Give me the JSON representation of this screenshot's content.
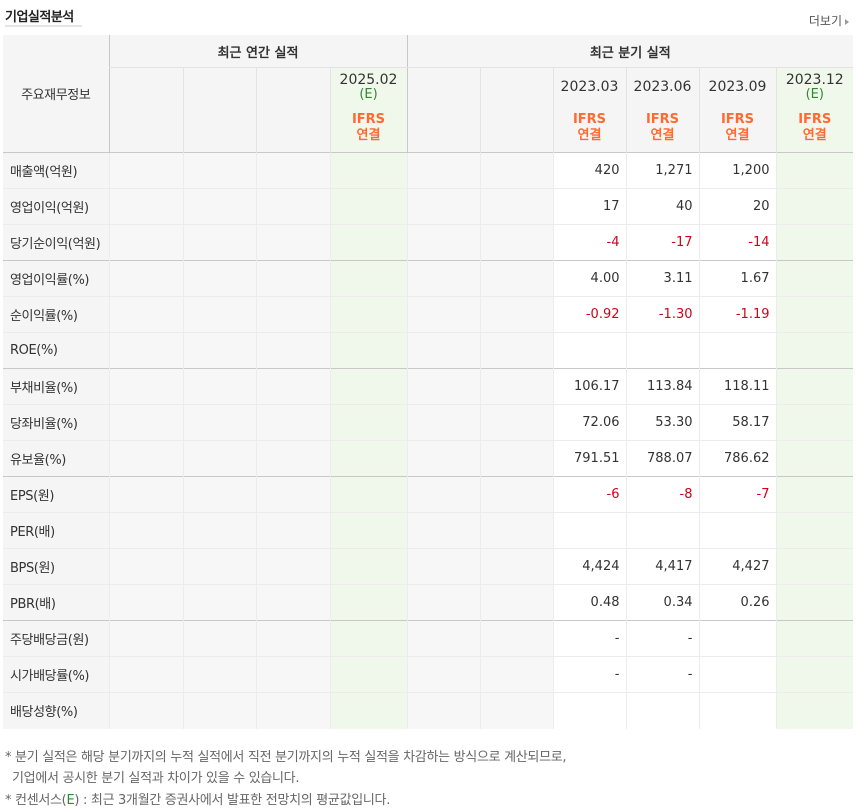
{
  "header": {
    "title": "기업실적분석",
    "more_label": "더보기"
  },
  "table": {
    "row_header_label": "주요재무정보",
    "annual_group_label": "최근 연간 실적",
    "quarter_group_label": "최근 분기 실적",
    "annual_columns": [
      "",
      "",
      "",
      "2025.02"
    ],
    "annual_estimates": [
      "",
      "",
      "",
      "(E)"
    ],
    "annual_ifrs": [
      "",
      "",
      "",
      "IFRS"
    ],
    "annual_basis": [
      "",
      "",
      "",
      "연결"
    ],
    "quarter_columns": [
      "",
      "",
      "2023.03",
      "2023.06",
      "2023.09",
      "2023.12"
    ],
    "quarter_estimates": [
      "",
      "",
      "",
      "",
      "",
      "(E)"
    ],
    "quarter_ifrs": [
      "",
      "",
      "IFRS",
      "IFRS",
      "IFRS",
      "IFRS"
    ],
    "quarter_basis": [
      "",
      "",
      "연결",
      "연결",
      "연결",
      "연결"
    ],
    "rows": [
      {
        "label": "매출액(억원)",
        "q": [
          "",
          "",
          "420",
          "1,271",
          "1,200",
          ""
        ]
      },
      {
        "label": "영업이익(억원)",
        "q": [
          "",
          "",
          "17",
          "40",
          "20",
          ""
        ]
      },
      {
        "label": "당기순이익(억원)",
        "q": [
          "",
          "",
          "-4",
          "-17",
          "-14",
          ""
        ]
      },
      {
        "label": "영업이익률(%)",
        "q": [
          "",
          "",
          "4.00",
          "3.11",
          "1.67",
          ""
        ]
      },
      {
        "label": "순이익률(%)",
        "q": [
          "",
          "",
          "-0.92",
          "-1.30",
          "-1.19",
          ""
        ]
      },
      {
        "label": "ROE(%)",
        "q": [
          "",
          "",
          "",
          "",
          "",
          ""
        ]
      },
      {
        "label": "부채비율(%)",
        "q": [
          "",
          "",
          "106.17",
          "113.84",
          "118.11",
          ""
        ]
      },
      {
        "label": "당좌비율(%)",
        "q": [
          "",
          "",
          "72.06",
          "53.30",
          "58.17",
          ""
        ]
      },
      {
        "label": "유보율(%)",
        "q": [
          "",
          "",
          "791.51",
          "788.07",
          "786.62",
          ""
        ]
      },
      {
        "label": "EPS(원)",
        "q": [
          "",
          "",
          "-6",
          "-8",
          "-7",
          ""
        ]
      },
      {
        "label": "PER(배)",
        "q": [
          "",
          "",
          "",
          "",
          "",
          ""
        ]
      },
      {
        "label": "BPS(원)",
        "q": [
          "",
          "",
          "4,424",
          "4,417",
          "4,427",
          ""
        ]
      },
      {
        "label": "PBR(배)",
        "q": [
          "",
          "",
          "0.48",
          "0.34",
          "0.26",
          ""
        ]
      },
      {
        "label": "주당배당금(원)",
        "q": [
          "",
          "",
          "-",
          "-",
          "",
          ""
        ]
      },
      {
        "label": "시가배당률(%)",
        "q": [
          "",
          "",
          "-",
          "-",
          "",
          ""
        ]
      },
      {
        "label": "배당성향(%)",
        "q": [
          "",
          "",
          "",
          "",
          "",
          ""
        ]
      }
    ]
  },
  "footnotes": {
    "line1": "분기 실적은 해당 분기까지의 누적 실적에서 직전 분기까지의 누적 실적을 차감하는 방식으로 계산되므로,",
    "line2": "기업에서 공시한 분기 실적과 차이가 있을 수 있습니다.",
    "line3_prefix": "컨센서스(",
    "line3_e": "E",
    "line3_suffix": ") : 최근 3개월간 증권사에서 발표한 전망치의 평균값입니다."
  },
  "colors": {
    "negative": "#d0021b",
    "ifrs": "#ff6a2f",
    "estimate": "#2f8a2f"
  }
}
